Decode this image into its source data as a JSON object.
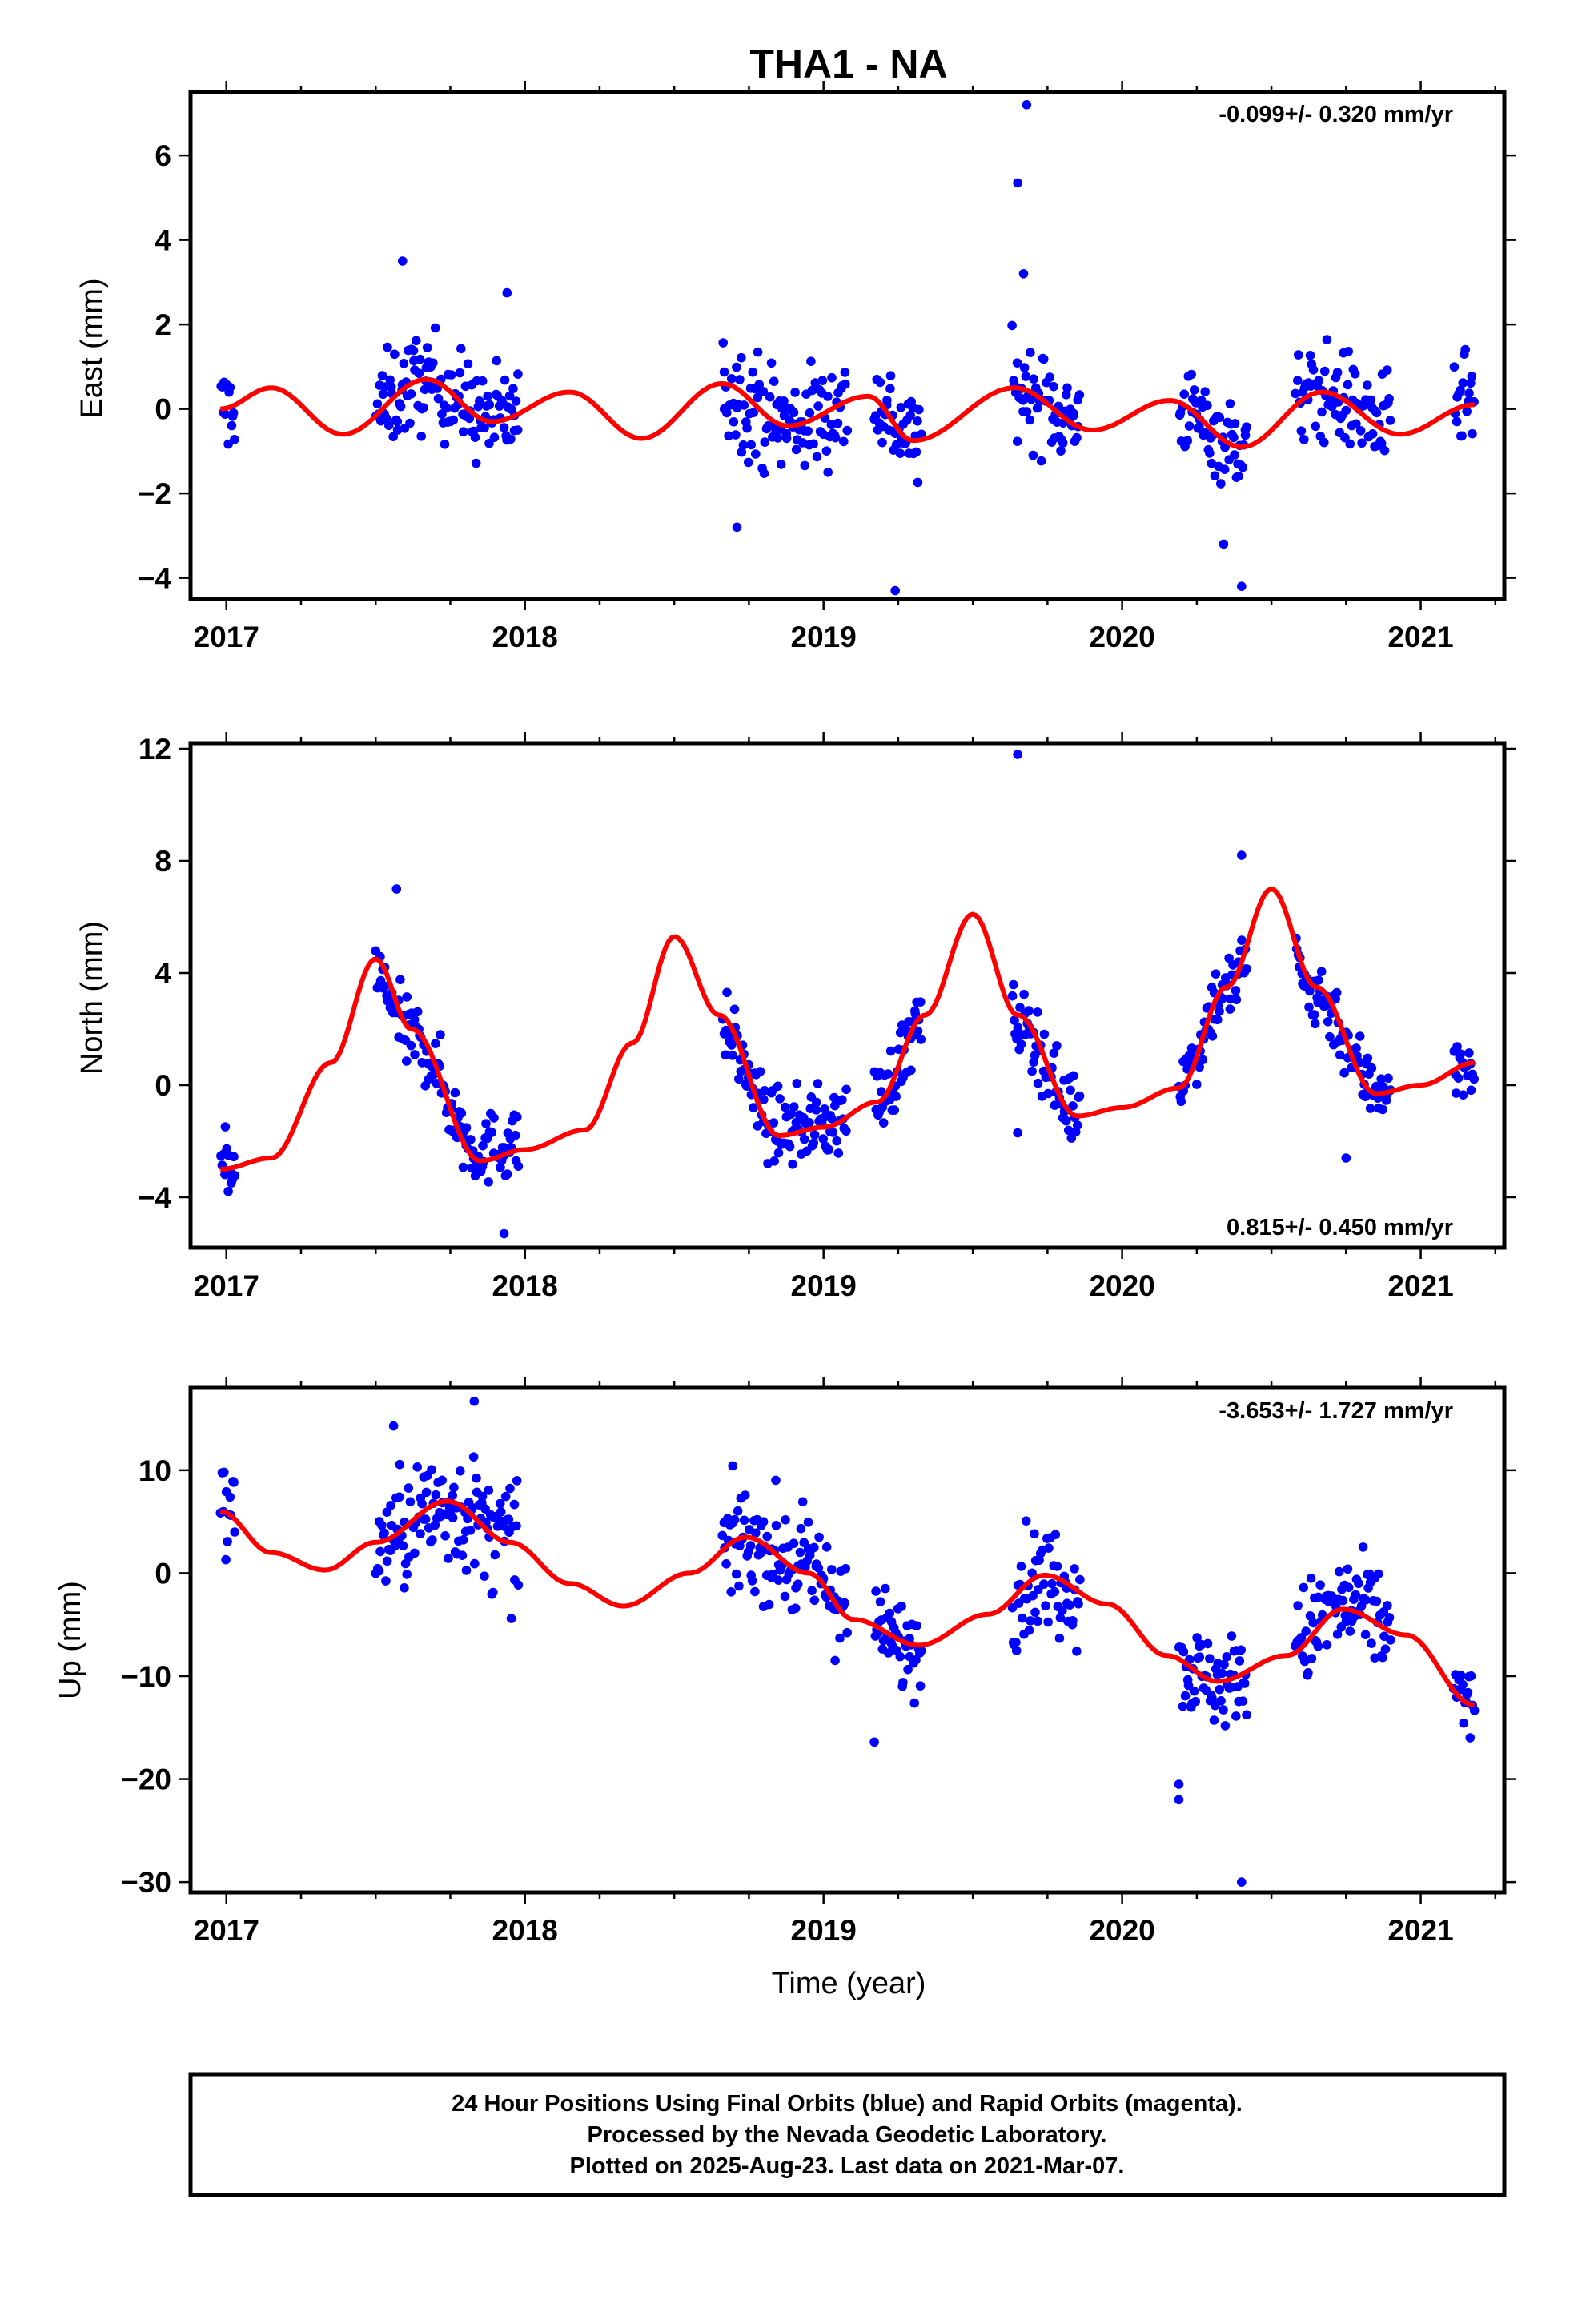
{
  "title": "THA1 - NA",
  "xlabel": "Time (year)",
  "colors": {
    "final_orbits": "#0000ff",
    "model_fit": "#ff0000",
    "frame": "#000000"
  },
  "footer": {
    "line1": "24 Hour Positions Using Final Orbits (blue) and Rapid Orbits (magenta).",
    "line2": "Processed by the Nevada Geodetic Laboratory.",
    "line3": "Plotted on 2025-Aug-23. Last data on 2021-Mar-07."
  },
  "chart_data": [
    {
      "type": "scatter",
      "component": "East",
      "ylabel": "East (mm)",
      "rate_label": "-0.099+/- 0.320 mm/yr",
      "xlim": [
        2016.88,
        2021.28
      ],
      "ylim": [
        -4.5,
        7.5
      ],
      "x_ticks": [
        2017,
        2018,
        2019,
        2020,
        2021
      ],
      "y_ticks": [
        -4,
        -2,
        0,
        2,
        4,
        6
      ],
      "y_tick_labels": [
        "−4",
        "−2",
        "0",
        "2",
        "4",
        "6"
      ],
      "segments": [
        [
          2016.98,
          2017.03,
          0.0,
          0.8
        ],
        [
          2017.5,
          2017.98,
          0.3,
          0.9
        ],
        [
          2018.66,
          2019.08,
          -0.1,
          1.0
        ],
        [
          2019.17,
          2019.33,
          0.1,
          0.9
        ],
        [
          2019.63,
          2019.86,
          0.2,
          0.9
        ],
        [
          2020.19,
          2020.42,
          -0.6,
          0.8
        ],
        [
          2020.58,
          2020.9,
          0.2,
          0.9
        ],
        [
          2021.11,
          2021.18,
          0.9,
          0.9
        ]
      ],
      "outliers": [
        [
          2019.68,
          7.2
        ],
        [
          2019.65,
          5.35
        ],
        [
          2017.59,
          3.5
        ],
        [
          2017.94,
          2.75
        ],
        [
          2019.67,
          3.2
        ],
        [
          2019.24,
          -4.3
        ],
        [
          2020.4,
          -4.2
        ],
        [
          2020.34,
          -3.2
        ],
        [
          2018.71,
          -2.8
        ]
      ],
      "fit_keypoints": [
        [
          2016.98,
          0.0
        ],
        [
          2017.15,
          0.5
        ],
        [
          2017.39,
          -0.6
        ],
        [
          2017.67,
          0.7
        ],
        [
          2017.89,
          -0.3
        ],
        [
          2018.15,
          0.4
        ],
        [
          2018.39,
          -0.7
        ],
        [
          2018.66,
          0.6
        ],
        [
          2018.88,
          -0.4
        ],
        [
          2019.15,
          0.3
        ],
        [
          2019.3,
          -0.75
        ],
        [
          2019.64,
          0.5
        ],
        [
          2019.9,
          -0.5
        ],
        [
          2020.16,
          0.2
        ],
        [
          2020.4,
          -0.9
        ],
        [
          2020.67,
          0.4
        ],
        [
          2020.93,
          -0.6
        ],
        [
          2021.18,
          0.1
        ]
      ]
    },
    {
      "type": "scatter",
      "component": "North",
      "ylabel": "North (mm)",
      "rate_label": "0.815+/- 0.450 mm/yr",
      "xlim": [
        2016.88,
        2021.28
      ],
      "ylim": [
        -5.8,
        12.2
      ],
      "x_ticks": [
        2017,
        2018,
        2019,
        2020,
        2021
      ],
      "y_ticks": [
        -4,
        0,
        4,
        8,
        12
      ],
      "y_tick_labels": [
        "−4",
        "0",
        "4",
        "8",
        "12"
      ],
      "segments": [
        [
          2016.98,
          2017.03,
          -3.4,
          1.0
        ],
        [
          2017.5,
          2017.98,
          0.0,
          1.0
        ],
        [
          2018.66,
          2019.08,
          -0.5,
          1.0
        ],
        [
          2019.17,
          2019.33,
          0.8,
          1.0
        ],
        [
          2019.63,
          2019.86,
          0.5,
          1.0
        ],
        [
          2020.19,
          2020.42,
          3.0,
          1.0
        ],
        [
          2020.58,
          2020.9,
          1.5,
          1.0
        ],
        [
          2021.11,
          2021.18,
          -0.4,
          0.9
        ]
      ],
      "outliers": [
        [
          2019.65,
          11.8
        ],
        [
          2020.4,
          8.2
        ],
        [
          2017.93,
          -5.3
        ],
        [
          2017.57,
          7.0
        ],
        [
          2020.75,
          -2.6
        ],
        [
          2019.65,
          -1.7
        ]
      ],
      "fit_keypoints": [
        [
          2016.98,
          -3.0
        ],
        [
          2017.15,
          -2.6
        ],
        [
          2017.35,
          0.8
        ],
        [
          2017.5,
          4.5
        ],
        [
          2017.62,
          2.0
        ],
        [
          2017.85,
          -2.7
        ],
        [
          2018.0,
          -2.3
        ],
        [
          2018.2,
          -1.6
        ],
        [
          2018.36,
          1.5
        ],
        [
          2018.5,
          5.3
        ],
        [
          2018.65,
          2.5
        ],
        [
          2018.85,
          -1.8
        ],
        [
          2019.0,
          -1.5
        ],
        [
          2019.18,
          -0.6
        ],
        [
          2019.34,
          2.5
        ],
        [
          2019.5,
          6.1
        ],
        [
          2019.65,
          2.5
        ],
        [
          2019.85,
          -1.1
        ],
        [
          2020.0,
          -0.8
        ],
        [
          2020.19,
          -0.1
        ],
        [
          2020.35,
          3.5
        ],
        [
          2020.5,
          7.0
        ],
        [
          2020.65,
          3.5
        ],
        [
          2020.85,
          -0.3
        ],
        [
          2021.0,
          0.0
        ],
        [
          2021.18,
          0.8
        ]
      ]
    },
    {
      "type": "scatter",
      "component": "Up",
      "ylabel": "Up (mm)",
      "rate_label": "-3.653+/- 1.727 mm/yr",
      "xlim": [
        2016.88,
        2021.28
      ],
      "ylim": [
        -31,
        18
      ],
      "x_ticks": [
        2017,
        2018,
        2019,
        2020,
        2021
      ],
      "y_ticks": [
        -30,
        -20,
        -10,
        0,
        10
      ],
      "y_tick_labels": [
        "−30",
        "−20",
        "−10",
        "0",
        "10"
      ],
      "segments": [
        [
          2016.98,
          2017.03,
          6.5,
          3.5
        ],
        [
          2017.5,
          2017.98,
          4.0,
          4.5
        ],
        [
          2018.66,
          2019.08,
          2.5,
          4.0
        ],
        [
          2019.17,
          2019.33,
          -8.5,
          3.5
        ],
        [
          2019.63,
          2019.86,
          -1.0,
          4.0
        ],
        [
          2020.19,
          2020.42,
          -11.0,
          3.5
        ],
        [
          2020.58,
          2020.9,
          -2.0,
          4.0
        ],
        [
          2021.11,
          2021.18,
          -11.5,
          3.0
        ]
      ],
      "outliers": [
        [
          2020.4,
          -30.0
        ],
        [
          2017.83,
          16.7
        ],
        [
          2020.19,
          -22.0
        ],
        [
          2020.19,
          -20.5
        ],
        [
          2017.56,
          14.3
        ],
        [
          2019.17,
          -16.4
        ]
      ],
      "fit_keypoints": [
        [
          2016.98,
          6.0
        ],
        [
          2017.15,
          2.0
        ],
        [
          2017.33,
          0.3
        ],
        [
          2017.5,
          3.0
        ],
        [
          2017.74,
          7.0
        ],
        [
          2017.95,
          3.0
        ],
        [
          2018.15,
          -1.0
        ],
        [
          2018.33,
          -3.2
        ],
        [
          2018.55,
          0.0
        ],
        [
          2018.74,
          3.5
        ],
        [
          2018.95,
          0.0
        ],
        [
          2019.1,
          -4.5
        ],
        [
          2019.32,
          -7.0
        ],
        [
          2019.55,
          -4.0
        ],
        [
          2019.74,
          -0.2
        ],
        [
          2019.95,
          -3.0
        ],
        [
          2020.15,
          -8.0
        ],
        [
          2020.32,
          -10.5
        ],
        [
          2020.55,
          -8.0
        ],
        [
          2020.74,
          -3.5
        ],
        [
          2020.95,
          -6.0
        ],
        [
          2021.18,
          -12.8
        ]
      ]
    }
  ]
}
